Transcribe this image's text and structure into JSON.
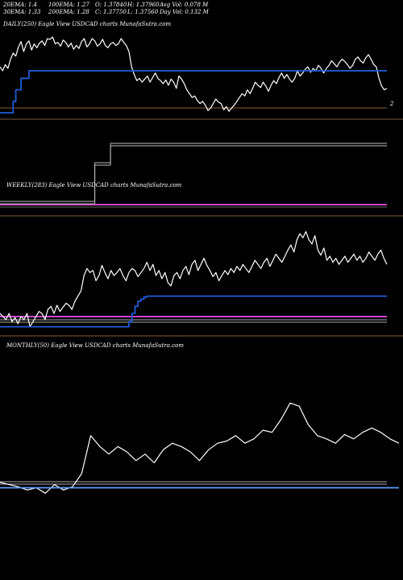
{
  "header": {
    "col1": [
      "20EMA: 1.4",
      "30EMA: 1.33"
    ],
    "col2": [
      "100EMA: 1.27",
      "200EMA: 1.28"
    ],
    "col3": [
      "O: 1.37840",
      "C: 1.37750"
    ],
    "col4": [
      "H: 1.37960",
      "L: 1.37560"
    ],
    "col5": [
      "Avg Vol: 0.078  M",
      "Day Vol: 0.132  M"
    ]
  },
  "panels": {
    "daily_label": "DAILY(250) Eagle  View  USDCAD charts MunafaSutra.com",
    "weekly_label": "WEEKLY(283) Eagle  View  USDCAD charts MunafaSutra.com",
    "monthly_label": "MONTHLY(50) Eagle  View  USDCAD charts MunafaSutra.com",
    "daily_right_label": "2"
  },
  "colors": {
    "background": "#000000",
    "price": "#ffffff",
    "ma": "#1f5bd8",
    "weekly_ma": "#cc44cc",
    "monthly_ma": "#5aa0ff",
    "baseline": "#8a5a2a",
    "separator": "#7a5a3a"
  },
  "chart_data": [
    {
      "type": "line",
      "name": "daily",
      "series": [
        {
          "values": [
            0.6,
            0.55,
            0.63,
            0.58,
            0.7,
            0.78,
            0.74,
            0.86,
            0.93,
            0.8,
            0.9,
            0.94,
            0.82,
            0.9,
            0.85,
            0.91,
            0.94,
            0.88,
            0.97,
            0.96,
            0.99,
            0.9,
            0.92,
            0.87,
            0.95,
            0.92,
            0.86,
            0.91,
            0.83,
            0.88,
            0.84,
            0.93,
            0.97,
            0.86,
            0.9,
            0.97,
            0.94,
            0.87,
            0.9,
            0.96,
            0.88,
            0.85,
            0.9,
            0.92,
            0.88,
            0.9,
            0.97,
            0.92,
            0.88,
            0.8,
            0.6,
            0.5,
            0.42,
            0.45,
            0.4,
            0.44,
            0.48,
            0.4,
            0.46,
            0.52,
            0.45,
            0.42,
            0.38,
            0.43,
            0.36,
            0.44,
            0.4,
            0.32,
            0.48,
            0.44,
            0.38,
            0.3,
            0.25,
            0.2,
            0.22,
            0.16,
            0.12,
            0.15,
            0.1,
            0.03,
            0.06,
            0.12,
            0.18,
            0.14,
            0.12,
            0.04,
            0.08,
            0.02,
            0.06,
            0.1,
            0.15,
            0.2,
            0.25,
            0.22,
            0.3,
            0.25,
            0.32,
            0.4,
            0.36,
            0.33,
            0.4,
            0.35,
            0.28,
            0.36,
            0.42,
            0.38,
            0.46,
            0.52,
            0.45,
            0.5,
            0.44,
            0.4,
            0.45,
            0.55,
            0.48,
            0.52,
            0.57,
            0.6,
            0.53,
            0.58,
            0.55,
            0.62,
            0.58,
            0.52,
            0.58,
            0.62,
            0.68,
            0.64,
            0.6,
            0.66,
            0.7,
            0.67,
            0.63,
            0.58,
            0.62,
            0.7,
            0.73,
            0.68,
            0.65,
            0.72,
            0.76,
            0.7,
            0.63,
            0.6,
            0.45,
            0.35,
            0.3,
            0.32
          ]
        },
        {
          "values": [
            0.0,
            0.0,
            0.0,
            0.0,
            0.0,
            0.15,
            0.3,
            0.3,
            0.45,
            0.45,
            0.45,
            0.55,
            0.55,
            0.55,
            0.55,
            0.55,
            0.55,
            0.55,
            0.55,
            0.55,
            0.55,
            0.55,
            0.55,
            0.55,
            0.55,
            0.55,
            0.55,
            0.55,
            0.55,
            0.55,
            0.55,
            0.55,
            0.55,
            0.55,
            0.55,
            0.55,
            0.55,
            0.55,
            0.55,
            0.55,
            0.55,
            0.55,
            0.55,
            0.55,
            0.55,
            0.55,
            0.55,
            0.55,
            0.55,
            0.55,
            0.55,
            0.55,
            0.55,
            0.55,
            0.55,
            0.55,
            0.55,
            0.55,
            0.55,
            0.55,
            0.55,
            0.55,
            0.55,
            0.55,
            0.55,
            0.55,
            0.55,
            0.55,
            0.55,
            0.55,
            0.55,
            0.55,
            0.55,
            0.55,
            0.55,
            0.55,
            0.55,
            0.55,
            0.55,
            0.55,
            0.55,
            0.55,
            0.55,
            0.55,
            0.55,
            0.55,
            0.55,
            0.55,
            0.55,
            0.55,
            0.55,
            0.55,
            0.55,
            0.55,
            0.55,
            0.55,
            0.55,
            0.55,
            0.55,
            0.55,
            0.55,
            0.55,
            0.55,
            0.55,
            0.55,
            0.55,
            0.55,
            0.55,
            0.55,
            0.55,
            0.55,
            0.55,
            0.55,
            0.55,
            0.55,
            0.55,
            0.55,
            0.55,
            0.55,
            0.55,
            0.55,
            0.55,
            0.55,
            0.55,
            0.55,
            0.55,
            0.55,
            0.55,
            0.55,
            0.55,
            0.55,
            0.55,
            0.55,
            0.55,
            0.55,
            0.55,
            0.55,
            0.55,
            0.55,
            0.55,
            0.55,
            0.55,
            0.55,
            0.55,
            0.55,
            0.55,
            0.55,
            0.55
          ]
        }
      ]
    },
    {
      "type": "line",
      "name": "weekly-overview",
      "series": [
        {
          "values": [
            0.1,
            0.1,
            0.1,
            0.1,
            0.1,
            0.1,
            0.1,
            0.1,
            0.1,
            0.1,
            0.1,
            0.1,
            0.7,
            0.7,
            1.0,
            1.0,
            1.0,
            1.0,
            1.0,
            1.0,
            1.0,
            1.0,
            1.0,
            1.0,
            1.0,
            1.0,
            1.0,
            1.0,
            1.0,
            1.0,
            1.0,
            1.0,
            1.0,
            1.0,
            1.0,
            1.0,
            1.0,
            1.0,
            1.0,
            1.0,
            1.0,
            1.0,
            1.0,
            1.0,
            1.0,
            1.0,
            1.0,
            1.0,
            1.0,
            1.0
          ]
        }
      ]
    },
    {
      "type": "line",
      "name": "weekly",
      "series": [
        {
          "values": [
            0.18,
            0.15,
            0.12,
            0.18,
            0.1,
            0.14,
            0.08,
            0.15,
            0.12,
            0.18,
            0.05,
            0.1,
            0.15,
            0.2,
            0.18,
            0.12,
            0.22,
            0.25,
            0.18,
            0.26,
            0.2,
            0.24,
            0.28,
            0.26,
            0.22,
            0.3,
            0.35,
            0.4,
            0.55,
            0.62,
            0.58,
            0.6,
            0.5,
            0.55,
            0.65,
            0.58,
            0.52,
            0.6,
            0.55,
            0.58,
            0.62,
            0.55,
            0.5,
            0.58,
            0.62,
            0.6,
            0.54,
            0.58,
            0.62,
            0.68,
            0.6,
            0.66,
            0.55,
            0.6,
            0.52,
            0.58,
            0.48,
            0.45,
            0.55,
            0.58,
            0.52,
            0.6,
            0.64,
            0.56,
            0.66,
            0.7,
            0.6,
            0.66,
            0.72,
            0.65,
            0.6,
            0.54,
            0.58,
            0.5,
            0.55,
            0.6,
            0.56,
            0.62,
            0.58,
            0.64,
            0.6,
            0.66,
            0.62,
            0.58,
            0.64,
            0.7,
            0.66,
            0.62,
            0.68,
            0.72,
            0.64,
            0.7,
            0.76,
            0.72,
            0.68,
            0.74,
            0.8,
            0.85,
            0.78,
            0.9,
            0.96,
            0.92,
            0.98,
            0.9,
            0.86,
            0.94,
            0.8,
            0.75,
            0.82,
            0.7,
            0.74,
            0.68,
            0.72,
            0.66,
            0.7,
            0.74,
            0.68,
            0.72,
            0.76,
            0.7,
            0.74,
            0.68,
            0.72,
            0.78,
            0.74,
            0.7,
            0.76,
            0.8,
            0.72,
            0.66
          ]
        },
        {
          "values": [
            0.05,
            0.05,
            0.05,
            0.05,
            0.05,
            0.05,
            0.05,
            0.05,
            0.05,
            0.05,
            0.05,
            0.05,
            0.05,
            0.05,
            0.05,
            0.05,
            0.05,
            0.05,
            0.05,
            0.05,
            0.05,
            0.05,
            0.05,
            0.05,
            0.05,
            0.05,
            0.05,
            0.05,
            0.05,
            0.05,
            0.05,
            0.05,
            0.05,
            0.05,
            0.05,
            0.05,
            0.05,
            0.05,
            0.05,
            0.05,
            0.05,
            0.05,
            0.05,
            0.1,
            0.18,
            0.25,
            0.3,
            0.32,
            0.34,
            0.35,
            0.35,
            0.35,
            0.35,
            0.35,
            0.35,
            0.35,
            0.35,
            0.35,
            0.35,
            0.35,
            0.35,
            0.35,
            0.35,
            0.35,
            0.35,
            0.35,
            0.35,
            0.35,
            0.35,
            0.35,
            0.35,
            0.35,
            0.35,
            0.35,
            0.35,
            0.35,
            0.35,
            0.35,
            0.35,
            0.35,
            0.35,
            0.35,
            0.35,
            0.35,
            0.35,
            0.35,
            0.35,
            0.35,
            0.35,
            0.35,
            0.35,
            0.35,
            0.35,
            0.35,
            0.35,
            0.35,
            0.35,
            0.35,
            0.35,
            0.35,
            0.35,
            0.35,
            0.35,
            0.35,
            0.35,
            0.35,
            0.35,
            0.35,
            0.35,
            0.35,
            0.35,
            0.35,
            0.35,
            0.35,
            0.35,
            0.35,
            0.35,
            0.35,
            0.35,
            0.35,
            0.35,
            0.35,
            0.35,
            0.35,
            0.35,
            0.35,
            0.35,
            0.35,
            0.35,
            0.35
          ]
        }
      ]
    },
    {
      "type": "line",
      "name": "monthly",
      "series": [
        {
          "values": [
            0.12,
            0.1,
            0.08,
            0.05,
            0.07,
            0.02,
            0.1,
            0.05,
            0.08,
            0.2,
            0.55,
            0.45,
            0.38,
            0.45,
            0.4,
            0.32,
            0.38,
            0.3,
            0.42,
            0.48,
            0.45,
            0.4,
            0.32,
            0.42,
            0.48,
            0.5,
            0.55,
            0.48,
            0.52,
            0.6,
            0.58,
            0.7,
            0.85,
            0.82,
            0.65,
            0.55,
            0.52,
            0.48,
            0.56,
            0.52,
            0.58,
            0.62,
            0.58,
            0.52,
            0.48
          ]
        },
        {
          "values": [
            0.07,
            0.07,
            0.07,
            0.07,
            0.07,
            0.07,
            0.07,
            0.07,
            0.07,
            0.07,
            0.07,
            0.07,
            0.07,
            0.07,
            0.07,
            0.07,
            0.07,
            0.07,
            0.07,
            0.07,
            0.07,
            0.07,
            0.07,
            0.07,
            0.07,
            0.07,
            0.07,
            0.07,
            0.07,
            0.07,
            0.07,
            0.07,
            0.07,
            0.07,
            0.07,
            0.07,
            0.07,
            0.07,
            0.07,
            0.07,
            0.07,
            0.07,
            0.07,
            0.07,
            0.07
          ]
        }
      ]
    }
  ]
}
